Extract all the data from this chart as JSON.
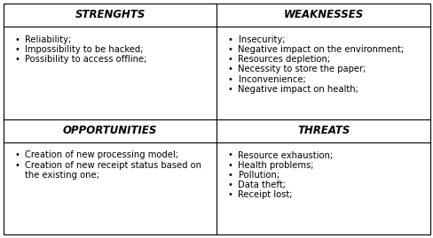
{
  "sections": [
    {
      "key": "strengths",
      "header": "STRENGHTS",
      "items": [
        "Reliability;",
        "Impossibility to be hacked;",
        "Possibility to access offline;"
      ],
      "row": 0,
      "col": 0
    },
    {
      "key": "weaknesses",
      "header": "WEAKNESSES",
      "items": [
        "Insecurity;",
        "Negative impact on the environment;",
        "Resources depletion;",
        "Necessity to store the paper;",
        "Inconvenience;",
        "Negative impact on health;"
      ],
      "row": 0,
      "col": 1
    },
    {
      "key": "opportunities",
      "header": "OPPORTUNITIES",
      "items": [
        "Creation of new processing model;",
        "Creation of new receipt status based on\nthe existing one;"
      ],
      "row": 1,
      "col": 0
    },
    {
      "key": "threats",
      "header": "THREATS",
      "items": [
        "Resource exhaustion;",
        "Health problems;",
        "Pollution;",
        "Data theft;",
        "Receipt lost;"
      ],
      "row": 1,
      "col": 1
    }
  ],
  "header_fontsize": 8.5,
  "body_fontsize": 7.2,
  "bullet": "•",
  "bg_color": "#ffffff",
  "border_color": "#000000",
  "text_color": "#000000",
  "fig_width": 4.89,
  "fig_height": 2.69,
  "dpi": 100
}
